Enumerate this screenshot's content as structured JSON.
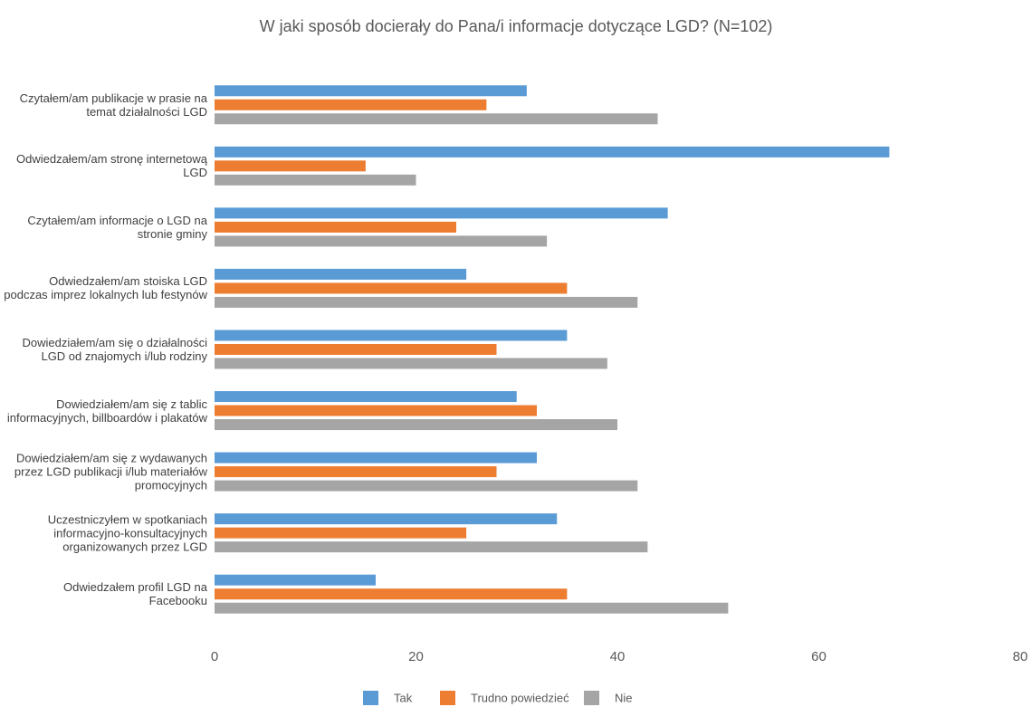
{
  "chart_data": {
    "type": "bar",
    "orientation": "horizontal",
    "title": "W jaki sposób docierały do Pana/i informacje dotyczące LGD? (N=102)",
    "categories": [
      "Czytałem/am publikacje w prasie na temat działalności LGD",
      "Odwiedzałem/am stronę internetową LGD",
      "Czytałem/am informacje o LGD na stronie gminy",
      "Odwiedzałem/am stoiska LGD podczas imprez lokalnych lub festynów",
      "Dowiedziałem/am się o działalności LGD od znajomych i/lub rodziny",
      "Dowiedziałem/am się z tablic informacyjnych, billboardów i plakatów",
      "Dowiedziałem/am się z wydawanych przez LGD publikacji i/lub materiałów promocyjnych",
      "Uczestniczyłem w spotkaniach informacyjno-konsultacyjnych organizowanych przez LGD",
      "Odwiedzałem profil LGD na Facebooku"
    ],
    "series": [
      {
        "name": "Tak",
        "color": "#5b9bd5",
        "values": [
          31,
          67,
          45,
          25,
          35,
          30,
          32,
          34,
          16
        ]
      },
      {
        "name": "Trudno powiedzieć",
        "color": "#ed7d31",
        "values": [
          27,
          15,
          24,
          35,
          28,
          32,
          28,
          25,
          35
        ]
      },
      {
        "name": "Nie",
        "color": "#a5a5a5",
        "values": [
          44,
          20,
          33,
          42,
          39,
          40,
          42,
          43,
          51
        ]
      }
    ],
    "xlim": [
      0,
      80
    ],
    "xticks": [
      0,
      20,
      40,
      60,
      80
    ],
    "grid": false,
    "legend": "bottom"
  }
}
